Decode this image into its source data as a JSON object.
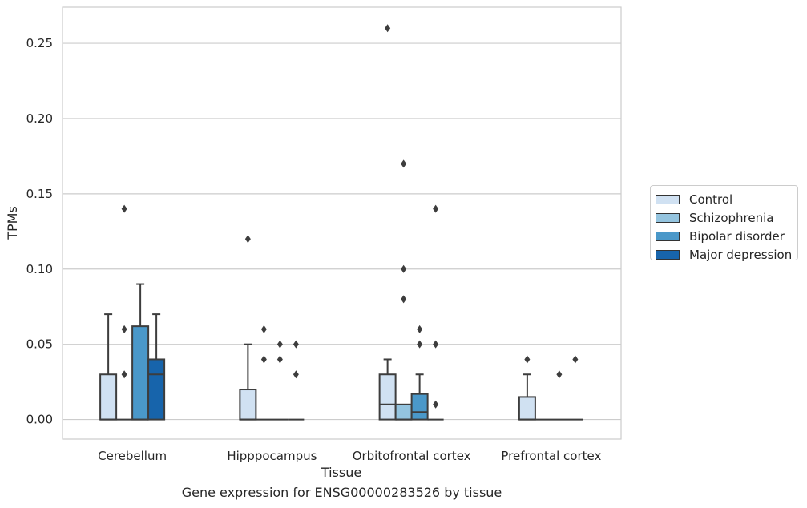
{
  "chart_data": {
    "type": "boxplot",
    "xlabel": "Tissue",
    "ylabel": "TPMs",
    "caption": "Gene expression for ENSG00000283526 by tissue",
    "categories": [
      "Cerebellum",
      "Hipppocampus",
      "Orbitofrontal cortex",
      "Prefrontal cortex"
    ],
    "ylim": [
      -0.013,
      0.274
    ],
    "yticks": [
      0.0,
      0.05,
      0.1,
      0.15,
      0.2,
      0.25
    ],
    "ytick_labels": [
      "0.00",
      "0.05",
      "0.10",
      "0.15",
      "0.20",
      "0.25"
    ],
    "grid": "horizontal",
    "legend_position": "right",
    "series": [
      {
        "name": "Control",
        "color": "#d0e1f2"
      },
      {
        "name": "Schizophrenia",
        "color": "#94c4df"
      },
      {
        "name": "Bipolar disorder",
        "color": "#4a98c9"
      },
      {
        "name": "Major depression",
        "color": "#1764ab"
      }
    ],
    "boxes": [
      [
        {
          "q1": 0,
          "median": 0,
          "q3": 0.03,
          "whisker_low": 0,
          "whisker_high": 0.07,
          "outliers": []
        },
        {
          "q1": 0,
          "median": 0,
          "q3": 0,
          "whisker_low": 0,
          "whisker_high": 0,
          "outliers": [
            0.03,
            0.06,
            0.14
          ]
        },
        {
          "q1": 0,
          "median": 0,
          "q3": 0.062,
          "whisker_low": 0,
          "whisker_high": 0.09,
          "outliers": []
        },
        {
          "q1": 0,
          "median": 0.03,
          "q3": 0.04,
          "whisker_low": 0,
          "whisker_high": 0.07,
          "outliers": []
        }
      ],
      [
        {
          "q1": 0,
          "median": 0,
          "q3": 0.02,
          "whisker_low": 0,
          "whisker_high": 0.05,
          "outliers": [
            0.12
          ]
        },
        {
          "q1": 0,
          "median": 0,
          "q3": 0,
          "whisker_low": 0,
          "whisker_high": 0,
          "outliers": [
            0.04,
            0.06
          ]
        },
        {
          "q1": 0,
          "median": 0,
          "q3": 0,
          "whisker_low": 0,
          "whisker_high": 0,
          "outliers": [
            0.04,
            0.05
          ]
        },
        {
          "q1": 0,
          "median": 0,
          "q3": 0,
          "whisker_low": 0,
          "whisker_high": 0,
          "outliers": [
            0.03,
            0.05
          ]
        }
      ],
      [
        {
          "q1": 0,
          "median": 0.01,
          "q3": 0.03,
          "whisker_low": 0,
          "whisker_high": 0.04,
          "outliers": [
            0.26
          ]
        },
        {
          "q1": 0,
          "median": 0,
          "q3": 0.01,
          "whisker_low": 0,
          "whisker_high": 0.01,
          "outliers": [
            0.08,
            0.1,
            0.17
          ]
        },
        {
          "q1": 0,
          "median": 0.005,
          "q3": 0.017,
          "whisker_low": 0,
          "whisker_high": 0.03,
          "outliers": [
            0.05,
            0.06
          ]
        },
        {
          "q1": 0,
          "median": 0,
          "q3": 0,
          "whisker_low": 0,
          "whisker_high": 0,
          "outliers": [
            0.01,
            0.05,
            0.14
          ]
        }
      ],
      [
        {
          "q1": 0,
          "median": 0,
          "q3": 0.015,
          "whisker_low": 0,
          "whisker_high": 0.03,
          "outliers": [
            0.04
          ]
        },
        {
          "q1": 0,
          "median": 0,
          "q3": 0,
          "whisker_low": 0,
          "whisker_high": 0,
          "outliers": []
        },
        {
          "q1": 0,
          "median": 0,
          "q3": 0,
          "whisker_low": 0,
          "whisker_high": 0,
          "outliers": [
            0.03
          ]
        },
        {
          "q1": 0,
          "median": 0,
          "q3": 0,
          "whisker_low": 0,
          "whisker_high": 0,
          "outliers": [
            0.04
          ]
        }
      ]
    ]
  }
}
